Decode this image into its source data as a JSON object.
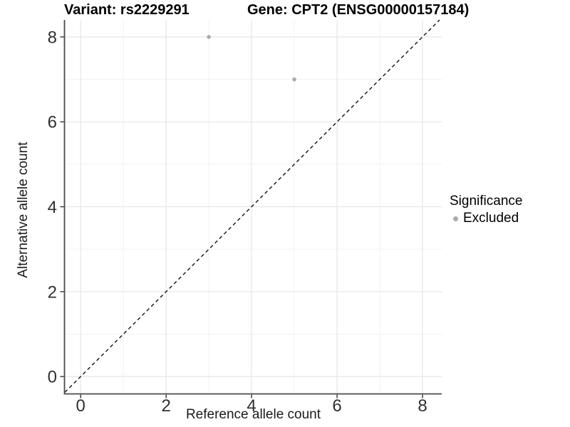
{
  "figure": {
    "title_left": "Variant: rs2229291",
    "title_right": "Gene: CPT2 (ENSG00000157184)"
  },
  "chart_data": {
    "type": "scatter",
    "title": "Variant: rs2229291   Gene: CPT2 (ENSG00000157184)",
    "xlabel": "Reference allele count",
    "ylabel": "Alternative allele count",
    "xlim": [
      -0.37,
      8.45
    ],
    "ylim": [
      -0.4,
      8.4
    ],
    "xticks": [
      0,
      2,
      4,
      6,
      8
    ],
    "yticks": [
      0,
      2,
      4,
      6,
      8
    ],
    "xtick_labels": [
      "0",
      "2",
      "4",
      "6",
      "8"
    ],
    "ytick_labels": [
      "0",
      "2",
      "4",
      "6",
      "8"
    ],
    "minor_xticks": [
      1,
      3,
      5,
      7
    ],
    "minor_yticks": [
      1,
      3,
      5,
      7
    ],
    "grid": true,
    "series": [
      {
        "name": "Excluded",
        "marker": "circle",
        "color": "#aaaaaa",
        "points": [
          {
            "x": 3,
            "y": 8
          },
          {
            "x": 5,
            "y": 7
          }
        ]
      }
    ],
    "reference_line": {
      "kind": "identity",
      "equation": "y = x",
      "style": "dashed",
      "color": "#111111"
    },
    "legend": {
      "title": "Significance",
      "position": "right",
      "items": [
        {
          "label": "Excluded",
          "color": "#aaaaaa",
          "marker": "circle"
        }
      ]
    }
  },
  "colors": {
    "background": "#ffffff",
    "grid_major": "#e6e6e6",
    "grid_minor": "#f2f2f2",
    "axis_line": "#4a4a4a",
    "tick_mark": "#333333",
    "tick_label": "#303030",
    "point": "#aaaaaa",
    "dashed_line": "#111111"
  }
}
